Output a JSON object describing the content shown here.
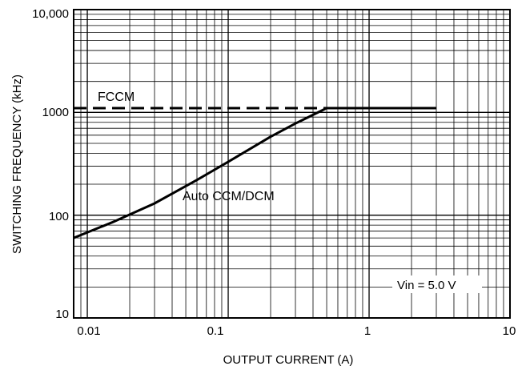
{
  "chart_data": {
    "type": "line",
    "xlabel": "OUTPUT CURRENT (A)",
    "ylabel": "SWITCHING FREQUENCY (kHz)",
    "xscale": "log",
    "yscale": "log",
    "xlim": [
      0.008,
      10
    ],
    "ylim": [
      10,
      10000
    ],
    "grid": true,
    "x_tick_labels": [
      "0.01",
      "0.1",
      "1",
      "10"
    ],
    "y_tick_labels": [
      "10",
      "100",
      "1000",
      "10,000"
    ],
    "series": [
      {
        "name": "FCCM",
        "style": "dashed",
        "x": [
          0.008,
          3
        ],
        "y": [
          1100,
          1100
        ]
      },
      {
        "name": "Auto CCM/DCM",
        "style": "solid",
        "x": [
          0.008,
          0.015,
          0.03,
          0.06,
          0.1,
          0.2,
          0.3,
          0.5,
          1,
          2,
          3
        ],
        "y": [
          60,
          85,
          130,
          220,
          330,
          580,
          780,
          1100,
          1100,
          1100,
          1100
        ]
      }
    ],
    "annotations": [
      "Vin = 5.0 V"
    ]
  }
}
